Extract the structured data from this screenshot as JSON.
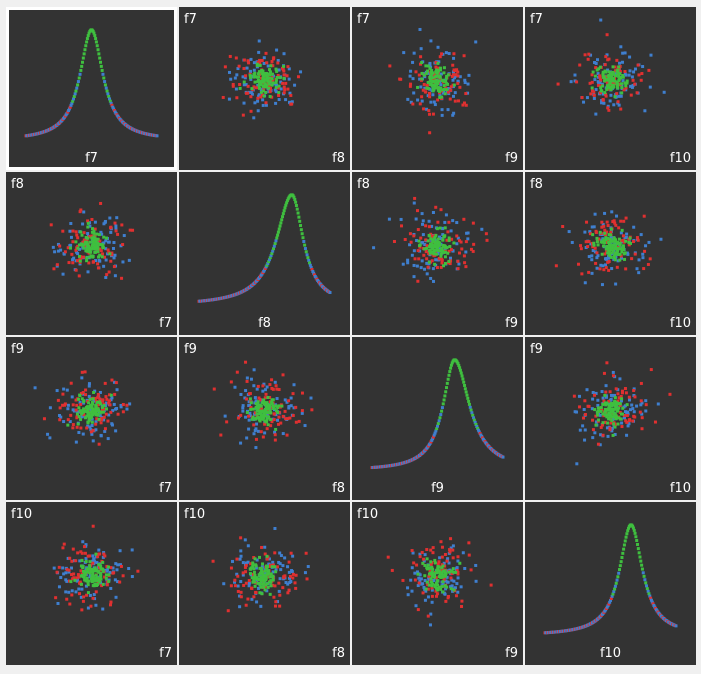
{
  "chart_data": {
    "type": "scatter_matrix",
    "variables": [
      "f7",
      "f8",
      "f9",
      "f10"
    ],
    "diagonal": "distribution-curve",
    "selected_cell": [
      0,
      0
    ],
    "colors": {
      "background": "#333333",
      "grid_line": "#f0f0f0",
      "selection": "#ffffff",
      "label": "#ffffff"
    },
    "classes": [
      {
        "color": "#3f7fcf"
      },
      {
        "color": "#e03030"
      },
      {
        "color": "#3fbf3f"
      }
    ]
  }
}
